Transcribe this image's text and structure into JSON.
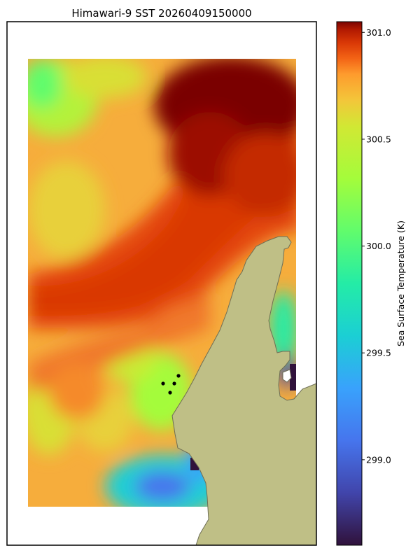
{
  "figure": {
    "title": "Himawari-9 SST 20260409150000"
  },
  "chart_data": {
    "type": "heatmap",
    "title": "Himawari-9 SST 20260409150000",
    "colorbar": {
      "label": "Sea Surface Temperature (K)",
      "range": [
        298.6,
        301.05
      ],
      "ticks": [
        "299.0",
        "299.5",
        "300.0",
        "300.5",
        "301.0"
      ],
      "tick_values": [
        299.0,
        299.5,
        300.0,
        300.5,
        301.0
      ],
      "colormap": "turbo"
    },
    "land_color": "#bfbf86",
    "coast_color": "#6e6e55",
    "marker_color": "#000000",
    "markers": 4,
    "grid": false,
    "summary": {
      "max_region": "northeast",
      "min_region": "south near coast",
      "max_value_K": 301.0,
      "min_value_K": 298.7
    }
  }
}
